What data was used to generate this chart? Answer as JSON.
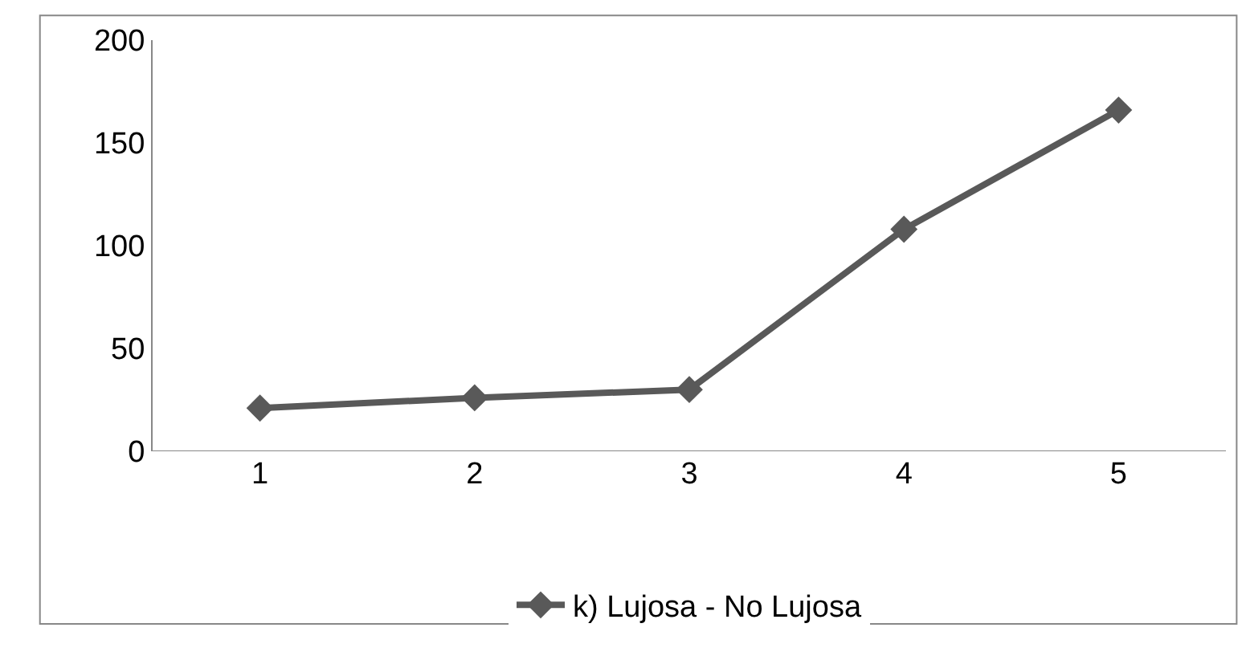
{
  "chart_data": {
    "type": "line",
    "categories": [
      "1",
      "2",
      "3",
      "4",
      "5"
    ],
    "series": [
      {
        "name": "k) Lujosa - No Lujosa",
        "color": "#595959",
        "values": [
          21,
          26,
          30,
          108,
          166
        ]
      }
    ],
    "ylim": [
      0,
      200
    ],
    "yticks": [
      0,
      50,
      100,
      150,
      200
    ],
    "legend": "bottom",
    "marker": "diamond",
    "line_style": "solid"
  }
}
